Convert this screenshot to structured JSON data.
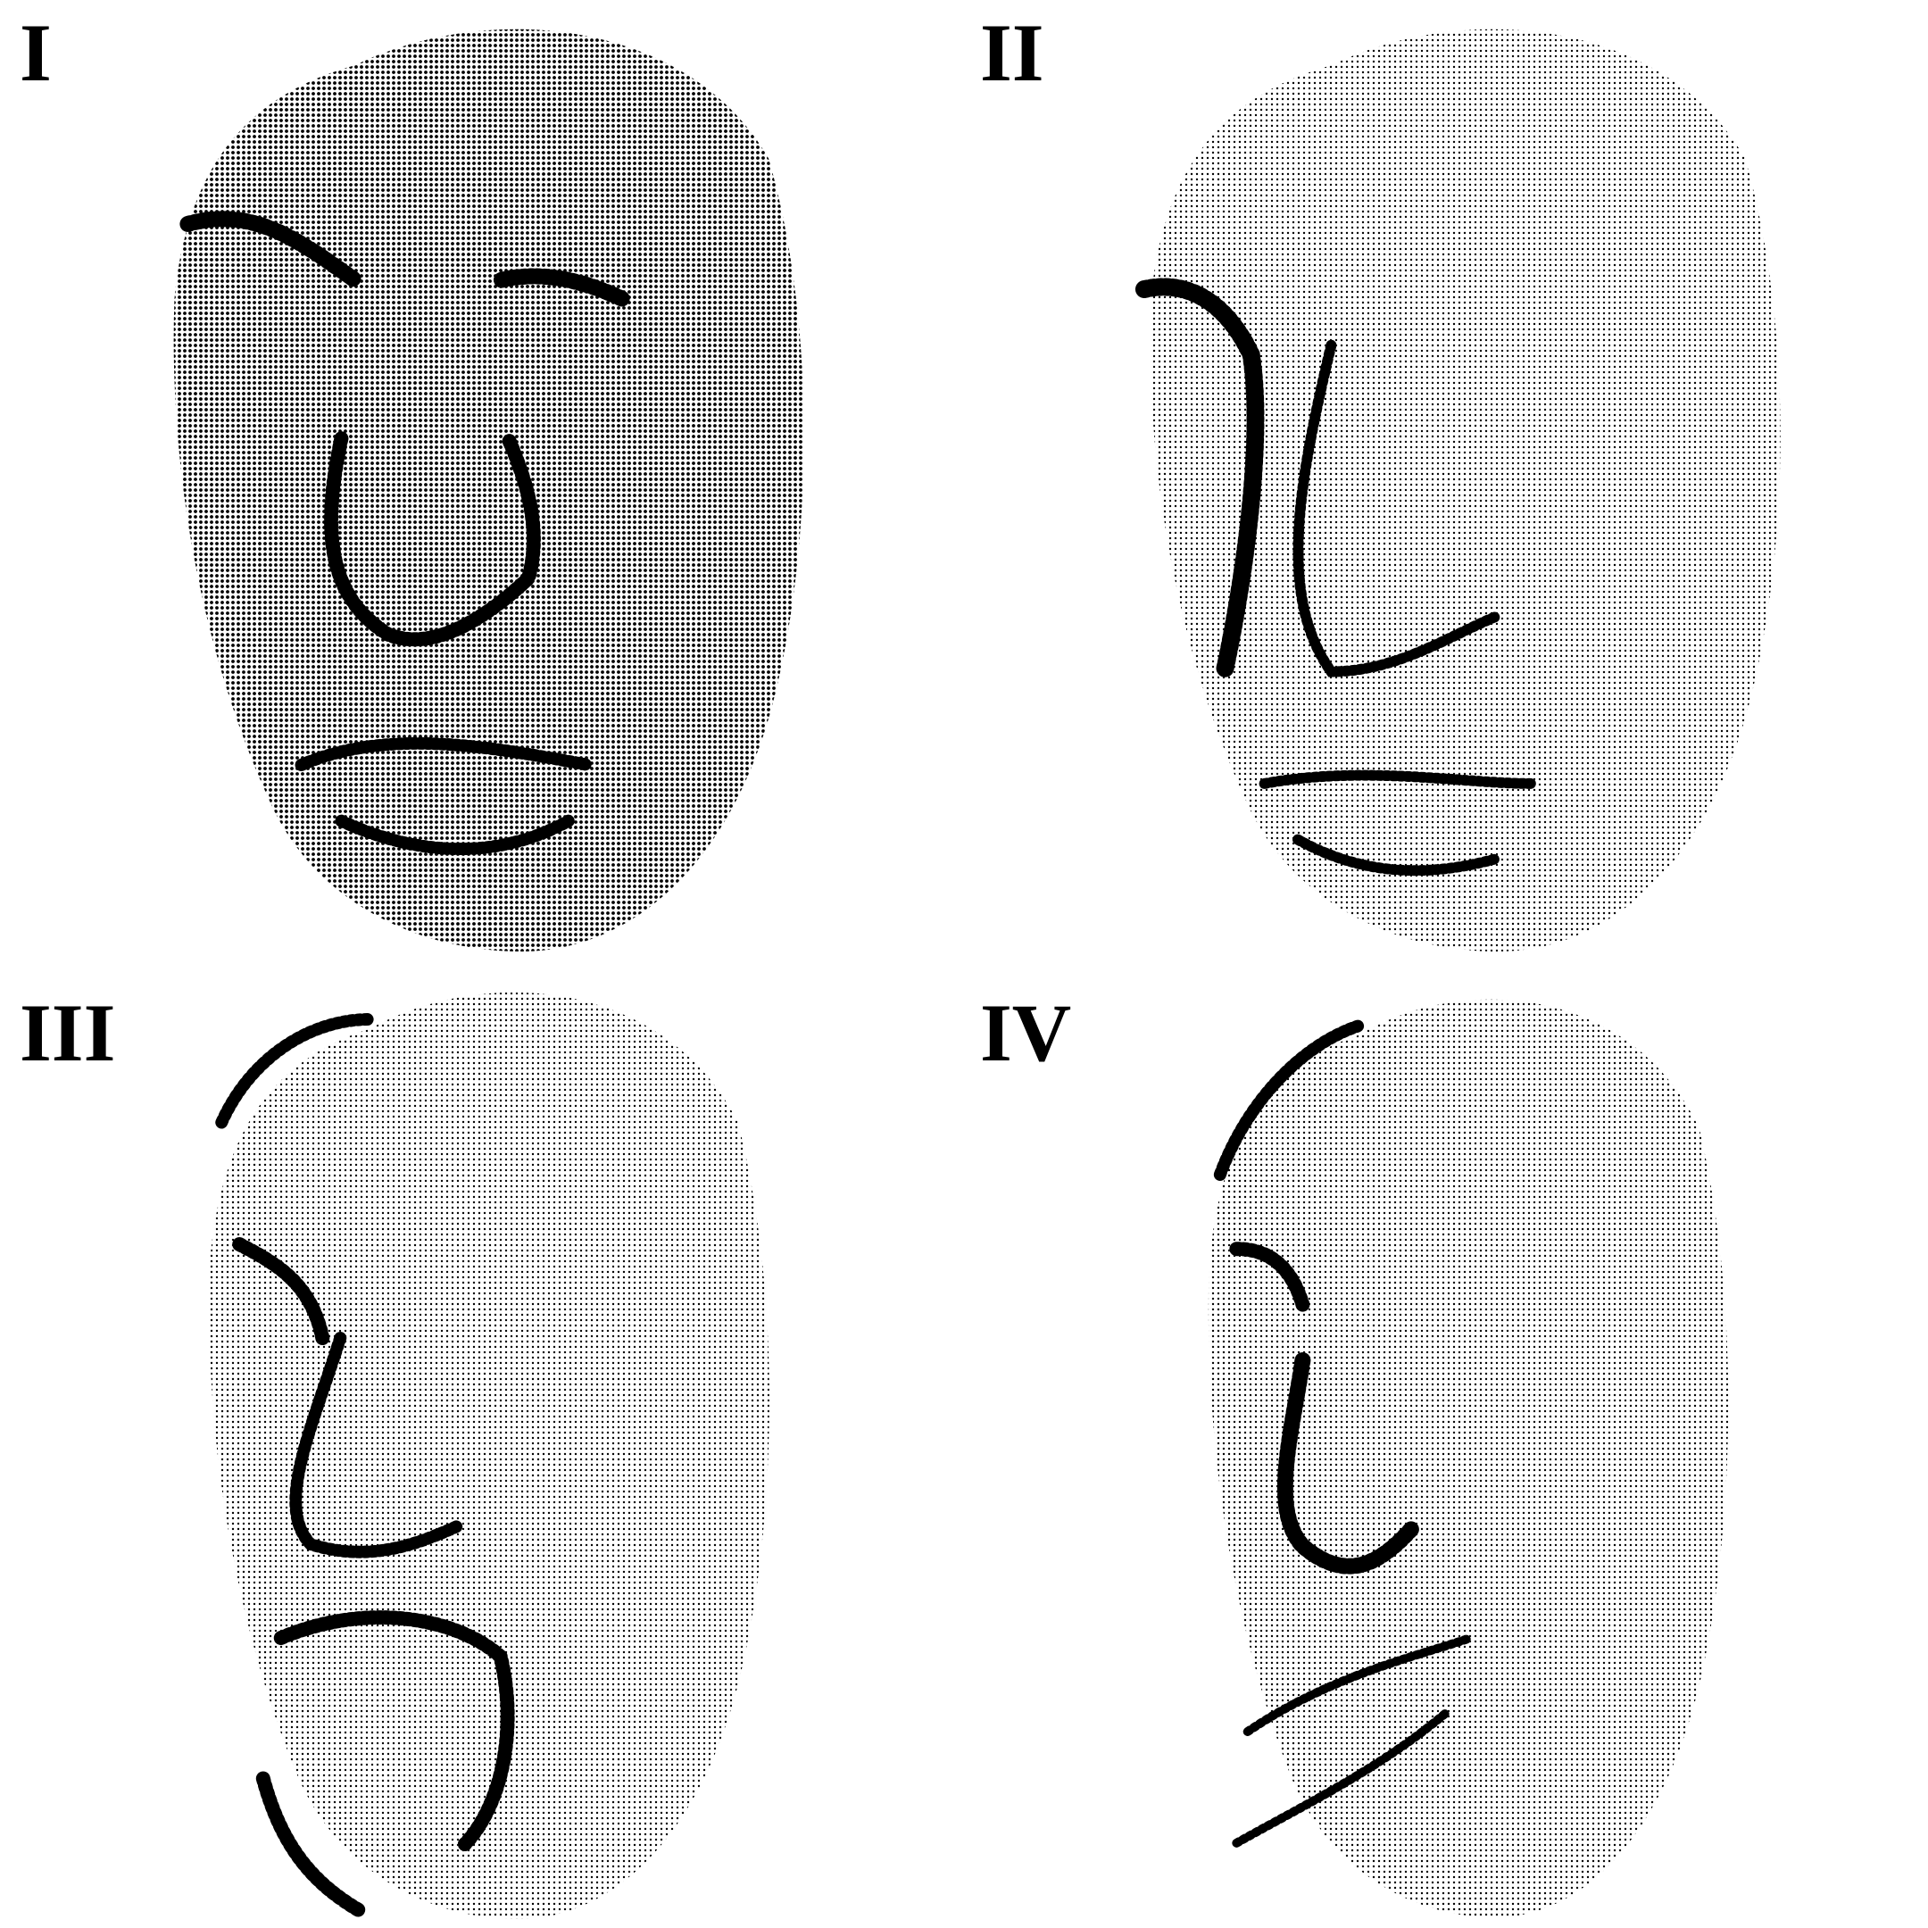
{
  "panels": [
    {
      "label": "I"
    },
    {
      "label": "II"
    },
    {
      "label": "III"
    },
    {
      "label": "IV"
    }
  ]
}
